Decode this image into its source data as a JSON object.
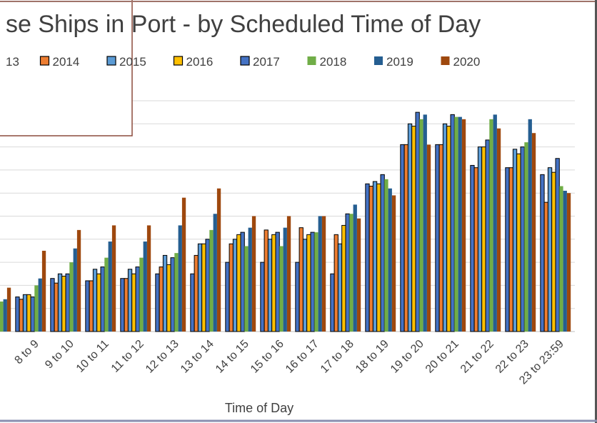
{
  "chart_data": {
    "type": "bar",
    "title": "se Ships in Port - by Scheduled Time of Day",
    "x_label": "Time of Day",
    "categories": [
      null,
      "8 to 9",
      "9 to 10",
      "10 to 11",
      "11 to 12",
      "12 to 13",
      "13 to 14",
      "14 to 15",
      "15 to 16",
      "16 to 17",
      "17 to 18",
      "18 to 19",
      "19 to 20",
      "20 to 21",
      "21 to 22",
      "22 to 23",
      "23 to 23:59"
    ],
    "ylim": [
      0,
      10
    ],
    "yticks": [
      0,
      1,
      2,
      3,
      4,
      5,
      6,
      7,
      8,
      9,
      10
    ],
    "grid": true,
    "legend": "top",
    "series": [
      {
        "name": "13",
        "color": "#4472c4",
        "edgecolor": "#000000",
        "values": [
          null,
          1.5,
          2.3,
          2.2,
          2.3,
          2.5,
          2.5,
          3.0,
          3.0,
          3.0,
          2.5,
          6.4,
          8.1,
          8.1,
          7.2,
          7.1,
          6.8
        ]
      },
      {
        "name": "2014",
        "color": "#ed7d31",
        "edgecolor": "#000000",
        "values": [
          null,
          1.4,
          2.1,
          2.2,
          2.3,
          2.8,
          3.3,
          3.8,
          4.4,
          4.5,
          4.2,
          6.3,
          8.1,
          8.1,
          7.1,
          7.1,
          5.6
        ]
      },
      {
        "name": "2015",
        "color": "#5b9bd5",
        "edgecolor": "#000000",
        "values": [
          null,
          1.6,
          2.5,
          2.7,
          2.7,
          3.3,
          3.8,
          4.0,
          4.0,
          4.0,
          3.8,
          6.5,
          9.0,
          9.0,
          8.0,
          7.9,
          7.1
        ]
      },
      {
        "name": "2016",
        "color": "#ffc000",
        "edgecolor": "#000000",
        "values": [
          null,
          1.6,
          2.4,
          2.5,
          2.5,
          2.9,
          3.8,
          4.2,
          4.2,
          4.2,
          4.6,
          6.4,
          8.9,
          8.9,
          8.0,
          7.7,
          6.9
        ]
      },
      {
        "name": "2017",
        "color": "#4472c4",
        "edgecolor": "#000000",
        "values": [
          null,
          1.5,
          2.5,
          2.8,
          2.8,
          3.2,
          4.0,
          4.3,
          4.3,
          4.3,
          5.1,
          6.8,
          9.5,
          9.4,
          8.3,
          8.0,
          7.5
        ]
      },
      {
        "name": "2018",
        "color": "#70ad47",
        "values": [
          1.3,
          2.0,
          3.0,
          3.2,
          3.2,
          3.4,
          4.4,
          3.7,
          3.7,
          4.3,
          5.1,
          6.6,
          9.2,
          9.3,
          9.2,
          8.2,
          6.3
        ]
      },
      {
        "name": "2019",
        "color": "#255e91",
        "values": [
          1.4,
          2.3,
          3.6,
          3.9,
          3.9,
          4.6,
          5.1,
          4.5,
          4.5,
          5.0,
          5.5,
          6.2,
          9.4,
          9.3,
          9.4,
          9.2,
          6.1
        ]
      },
      {
        "name": "2020",
        "color": "#9e480e",
        "values": [
          1.9,
          3.5,
          4.4,
          4.6,
          4.6,
          5.8,
          6.2,
          5.0,
          5.0,
          5.0,
          4.9,
          5.9,
          8.1,
          9.2,
          8.8,
          8.6,
          6.0
        ]
      }
    ]
  }
}
